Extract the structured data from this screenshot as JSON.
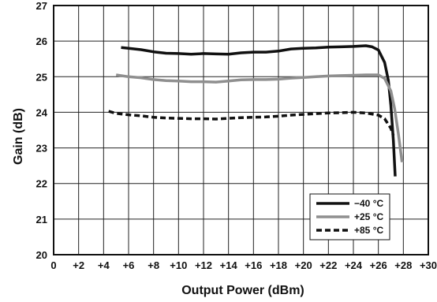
{
  "chart_data": {
    "type": "line",
    "xlabel": "Output Power (dBm)",
    "ylabel": "Gain (dB)",
    "xlim": [
      0,
      30
    ],
    "ylim": [
      20,
      27
    ],
    "grid": true,
    "legend_position": "bottom-right",
    "x_ticks": [
      0,
      2,
      4,
      6,
      8,
      10,
      12,
      14,
      16,
      18,
      20,
      22,
      24,
      26,
      28,
      30
    ],
    "x_tick_labels": [
      "0",
      "+2",
      "+4",
      "+6",
      "+8",
      "+10",
      "+12",
      "+14",
      "+16",
      "+18",
      "+20",
      "+22",
      "+24",
      "+26",
      "+28",
      "+30"
    ],
    "y_ticks": [
      20,
      21,
      22,
      23,
      24,
      25,
      26,
      27
    ],
    "y_tick_labels": [
      "20",
      "21",
      "22",
      "23",
      "24",
      "25",
      "26",
      "27"
    ],
    "series": [
      {
        "name": "−40 °C",
        "color": "#111111",
        "style": "solid",
        "x": [
          5.4,
          6,
          7,
          8,
          9,
          10,
          11,
          12,
          13,
          14,
          15,
          16,
          17,
          18,
          19,
          20,
          21,
          22,
          23,
          24,
          25,
          25.5,
          26,
          26.5,
          26.8,
          27,
          27.2,
          27.35
        ],
        "y": [
          25.82,
          25.8,
          25.76,
          25.7,
          25.66,
          25.65,
          25.63,
          25.65,
          25.64,
          25.63,
          25.67,
          25.69,
          25.69,
          25.72,
          25.78,
          25.8,
          25.81,
          25.83,
          25.84,
          25.85,
          25.87,
          25.84,
          25.75,
          25.4,
          24.9,
          24.2,
          23.2,
          22.2
        ]
      },
      {
        "name": "+25 °C",
        "color": "#8f8f8f",
        "style": "solid",
        "x": [
          5,
          6,
          7,
          8,
          9,
          10,
          11,
          12,
          13,
          14,
          15,
          16,
          17,
          18,
          19,
          20,
          21,
          22,
          23,
          24,
          25,
          26,
          26.5,
          27,
          27.3,
          27.6,
          27.9
        ],
        "y": [
          25.05,
          25.0,
          24.97,
          24.92,
          24.89,
          24.88,
          24.86,
          24.86,
          24.85,
          24.88,
          24.91,
          24.92,
          24.92,
          24.93,
          24.96,
          24.98,
          25.0,
          25.02,
          25.03,
          25.04,
          25.05,
          25.05,
          24.95,
          24.6,
          24.1,
          23.4,
          22.6
        ]
      },
      {
        "name": "+85 °C",
        "color": "#111111",
        "style": "dashed",
        "x": [
          4.4,
          5,
          6,
          7,
          8,
          9,
          10,
          11,
          12,
          13,
          14,
          15,
          16,
          17,
          18,
          19,
          20,
          21,
          22,
          23,
          24,
          25,
          26,
          26.5,
          27,
          27.2
        ],
        "y": [
          24.03,
          23.97,
          23.93,
          23.9,
          23.86,
          23.84,
          23.83,
          23.82,
          23.82,
          23.81,
          23.83,
          23.85,
          23.86,
          23.87,
          23.89,
          23.92,
          23.94,
          23.96,
          23.98,
          23.99,
          24.0,
          23.98,
          23.92,
          23.82,
          23.55,
          23.35
        ]
      }
    ]
  }
}
